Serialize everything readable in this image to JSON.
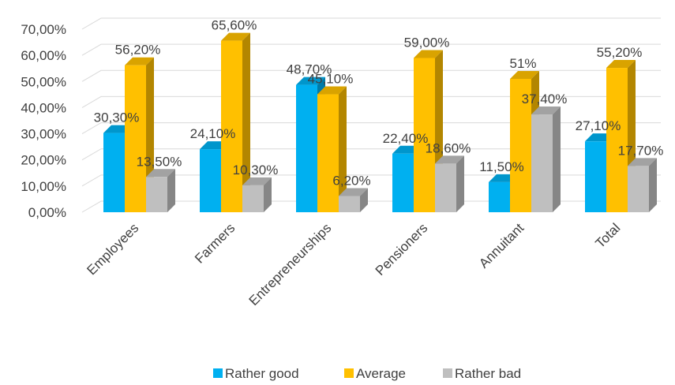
{
  "chart_data": {
    "type": "bar",
    "title": "",
    "xlabel": "",
    "ylabel": "",
    "categories": [
      "Employees",
      "Farmers",
      "Entrepreneurships",
      "Pensioners",
      "Annuitant",
      "Total"
    ],
    "series": [
      {
        "name": "Rather good",
        "color": "#00b0f0",
        "values": [
          30.3,
          24.1,
          48.7,
          22.4,
          11.5,
          27.1
        ],
        "labels": [
          "30,30%",
          "24,10%",
          "48,70%",
          "22,40%",
          "11,50%",
          "27,10%"
        ]
      },
      {
        "name": "Average",
        "color": "#ffc000",
        "values": [
          56.2,
          65.6,
          45.1,
          59.0,
          51.0,
          55.2
        ],
        "labels": [
          "56,20%",
          "65,60%",
          "45,10%",
          "59,00%",
          "51%",
          "55,20%"
        ]
      },
      {
        "name": "Rather bad",
        "color": "#bfbfbf",
        "values": [
          13.5,
          10.3,
          6.2,
          18.6,
          37.4,
          17.7
        ],
        "labels": [
          "13,50%",
          "10,30%",
          "6,20%",
          "18,60%",
          "37,40%",
          "17,70%"
        ]
      }
    ],
    "ylim": [
      0,
      70
    ],
    "yticks": [
      0,
      10,
      20,
      30,
      40,
      50,
      60,
      70
    ],
    "ytick_labels": [
      "0,00%",
      "10,00%",
      "20,00%",
      "30,00%",
      "40,00%",
      "50,00%",
      "60,00%",
      "70,00%"
    ],
    "grid": true,
    "legend_position": "bottom"
  }
}
